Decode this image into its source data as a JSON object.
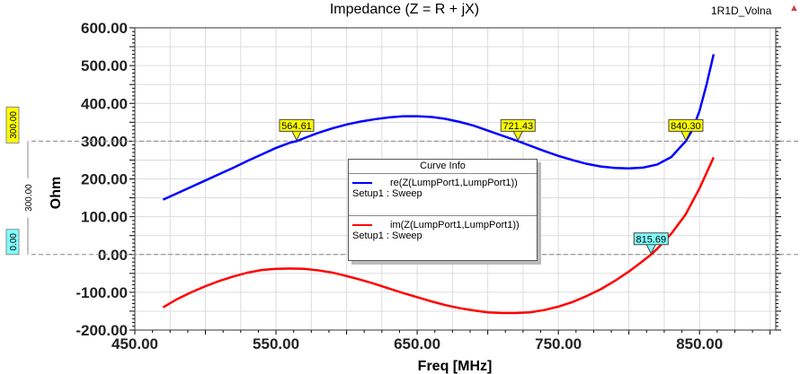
{
  "chart_data": {
    "type": "line",
    "title": "Impedance (Z = R + jX)",
    "project": "1R1D_Volna",
    "xlabel": "Freq [MHz]",
    "ylabel": "Ohm",
    "xlim": [
      450,
      904
    ],
    "ylim": [
      -200,
      600
    ],
    "xticks": [
      450,
      550,
      650,
      750,
      850
    ],
    "xtick_labels": [
      "450.00",
      "550.00",
      "650.00",
      "750.00",
      "850.00"
    ],
    "yticks": [
      600,
      500,
      400,
      300,
      200,
      100,
      0,
      -100,
      -200
    ],
    "ytick_labels": [
      "600.00",
      "500.00",
      "400.00",
      "300.00",
      "200.00",
      "100.00",
      "0.00",
      "-100.00",
      "-200.00"
    ],
    "grid": true,
    "legend": {
      "title": "Curve Info",
      "placement": "center"
    },
    "series": [
      {
        "name": "re(Z(LumpPort1,LumpPort1))",
        "setup": "Setup1 : Sweep",
        "color": "#0000ff",
        "x": [
          470,
          480,
          490,
          500,
          510,
          520,
          530,
          540,
          550,
          560,
          564.61,
          570,
          580,
          590,
          600,
          610,
          620,
          630,
          640,
          650,
          660,
          670,
          680,
          690,
          700,
          710,
          721.43,
          730,
          740,
          750,
          760,
          770,
          780,
          790,
          800,
          810,
          820,
          830,
          840.3,
          845,
          850,
          855,
          860
        ],
        "y": [
          145,
          162,
          179,
          196,
          213,
          230,
          248,
          265,
          282,
          296,
          300,
          308,
          322,
          334,
          344,
          352,
          358,
          363,
          366,
          366,
          364,
          359,
          351,
          341,
          328,
          315,
          300,
          288,
          274,
          261,
          250,
          240,
          233,
          229,
          228,
          230,
          238,
          258,
          300,
          330,
          380,
          450,
          530
        ]
      },
      {
        "name": "im(Z(LumpPort1,LumpPort1))",
        "setup": "Setup1 : Sweep",
        "color": "#ff0000",
        "x": [
          470,
          480,
          490,
          500,
          510,
          520,
          530,
          540,
          550,
          560,
          570,
          580,
          590,
          600,
          610,
          620,
          630,
          640,
          650,
          660,
          670,
          680,
          690,
          700,
          710,
          720,
          730,
          740,
          750,
          760,
          770,
          780,
          790,
          800,
          810,
          815.69,
          820,
          830,
          840,
          850,
          860
        ],
        "y": [
          -140,
          -118,
          -100,
          -84,
          -70,
          -58,
          -48,
          -41,
          -38,
          -37,
          -38,
          -42,
          -48,
          -57,
          -67,
          -78,
          -90,
          -102,
          -113,
          -124,
          -134,
          -142,
          -148,
          -153,
          -155,
          -155,
          -153,
          -147,
          -138,
          -126,
          -110,
          -92,
          -70,
          -45,
          -17,
          0,
          15,
          55,
          105,
          175,
          257
        ]
      }
    ],
    "markers": [
      {
        "label": "564.61",
        "x": 564.61,
        "y": 300,
        "series": 0
      },
      {
        "label": "721.43",
        "x": 721.43,
        "y": 300,
        "series": 0
      },
      {
        "label": "840.30",
        "x": 840.3,
        "y": 300,
        "series": 0
      },
      {
        "label": "815.69",
        "x": 815.69,
        "y": 0,
        "series": 1
      }
    ],
    "y_markers": [
      {
        "label": "300.00",
        "y": 300,
        "color": "#ffff00"
      },
      {
        "label": "0.00",
        "y": 0,
        "color": "#80ffff"
      }
    ],
    "delta_label": "300.00"
  }
}
